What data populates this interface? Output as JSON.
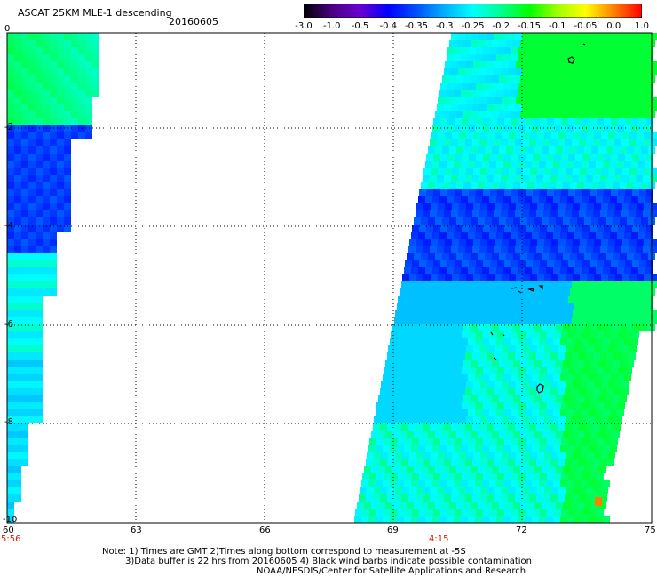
{
  "header": {
    "title": "ASCAT 25KM MLE-1 descending",
    "date": "20160605"
  },
  "colorbar": {
    "labels": [
      "-3.0",
      "-1.0",
      "-0.5",
      "-0.4",
      "-0.35",
      "-0.3",
      "-0.25",
      "-0.2",
      "-0.15",
      "-0.1",
      "-0.05",
      "0.0",
      "1.0"
    ],
    "colors": [
      "#000000",
      "#4b0082",
      "#6a00d0",
      "#0000ff",
      "#0050ff",
      "#00b0ff",
      "#00ffff",
      "#00ff90",
      "#00ff00",
      "#a0ff00",
      "#ffff00",
      "#ff8000",
      "#ff0000"
    ]
  },
  "map": {
    "x_axis": {
      "ticks": [
        "60",
        "63",
        "66",
        "69",
        "72",
        "75"
      ]
    },
    "y_axis": {
      "ticks": [
        "0",
        "-2",
        "-4",
        "-6",
        "-8",
        "-10"
      ]
    },
    "pass_times": {
      "left": "5:56",
      "right": "4:15"
    },
    "lon_range": [
      60,
      75
    ],
    "lat_range": [
      -10,
      0
    ],
    "swath_colors": {
      "low": "#0000ff",
      "mid": "#00b0ff",
      "cyan": "#00ffff",
      "green": "#00ff00",
      "hot": "#ff8000"
    }
  },
  "notes": {
    "line1": "Note: 1) Times are GMT 2)Times along bottom correspond to measurement at -5S",
    "line2": "3)Data buffer is 22 hrs from 20160605 4) Black wind barbs indicate possible contamination",
    "line3": "NOAA/NESDIS/Center for Satellite Applications and Research"
  }
}
